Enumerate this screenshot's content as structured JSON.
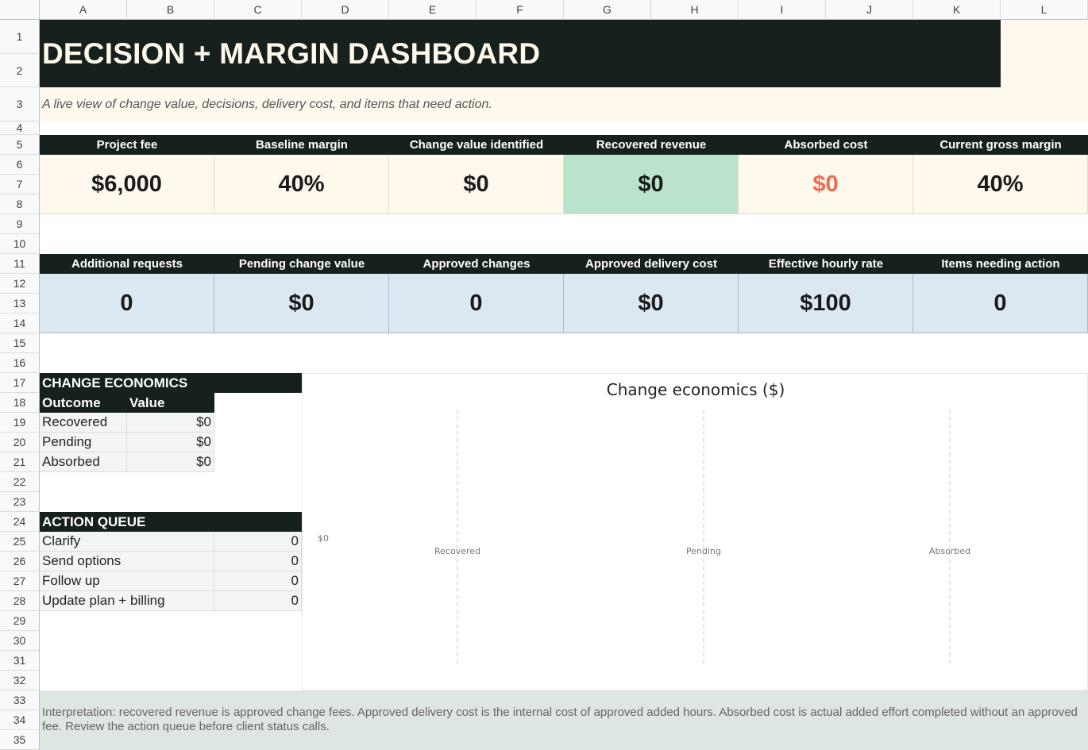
{
  "columns": [
    "A",
    "B",
    "C",
    "D",
    "E",
    "F",
    "G",
    "H",
    "I",
    "J",
    "K",
    "L"
  ],
  "rows": [
    "1",
    "2",
    "3",
    "4",
    "5",
    "6",
    "7",
    "8",
    "9",
    "10",
    "11",
    "12",
    "13",
    "14",
    "15",
    "16",
    "17",
    "18",
    "19",
    "20",
    "21",
    "22",
    "23",
    "24",
    "25",
    "26",
    "27",
    "28",
    "29",
    "30",
    "31",
    "32",
    "33",
    "34",
    "35"
  ],
  "title": "DECISION + MARGIN DASHBOARD",
  "subtitle": "A live view of change value, decisions, delivery cost, and items that need action.",
  "kpis_top": [
    {
      "label": "Project fee",
      "value": "$6,000",
      "bg": "#fff8ec",
      "color": "#1a1a1a"
    },
    {
      "label": "Baseline margin",
      "value": "40%",
      "bg": "#fff8ec",
      "color": "#1a1a1a"
    },
    {
      "label": "Change value identified",
      "value": "$0",
      "bg": "#fff8ec",
      "color": "#1a1a1a"
    },
    {
      "label": "Recovered revenue",
      "value": "$0",
      "bg": "#b9e3ca",
      "color": "#1a1a1a"
    },
    {
      "label": "Absorbed cost",
      "value": "$0",
      "bg": "#fff8ec",
      "color": "#f06b4e"
    },
    {
      "label": "Current gross margin",
      "value": "40%",
      "bg": "#fff8ec",
      "color": "#1a1a1a"
    }
  ],
  "kpis_bottom": [
    {
      "label": "Additional requests",
      "value": "0"
    },
    {
      "label": "Pending change value",
      "value": "$0"
    },
    {
      "label": "Approved changes",
      "value": "0"
    },
    {
      "label": "Approved delivery cost",
      "value": "$0"
    },
    {
      "label": "Effective hourly rate",
      "value": "$100"
    },
    {
      "label": "Items needing action",
      "value": "0"
    }
  ],
  "change_economics": {
    "title": "CHANGE ECONOMICS",
    "col_outcome": "Outcome",
    "col_value": "Value",
    "rows": [
      {
        "outcome": "Recovered",
        "value": "$0"
      },
      {
        "outcome": "Pending",
        "value": "$0"
      },
      {
        "outcome": "Absorbed",
        "value": "$0"
      }
    ]
  },
  "action_queue": {
    "title": "ACTION QUEUE",
    "rows": [
      {
        "label": "Clarify",
        "count": "0"
      },
      {
        "label": "Send options",
        "count": "0"
      },
      {
        "label": "Follow up",
        "count": "0"
      },
      {
        "label": "Update plan + billing",
        "count": "0"
      }
    ]
  },
  "chart_data": {
    "type": "bar",
    "title": "Change economics ($)",
    "categories": [
      "Recovered",
      "Pending",
      "Absorbed"
    ],
    "values": [
      0,
      0,
      0
    ],
    "y_tick_labels": [
      "$0"
    ],
    "grid": "vertical-dashed",
    "legend": "none"
  },
  "footer": "Interpretation: recovered revenue is approved change fees. Approved delivery cost is the internal cost of approved added hours. Absorbed cost is actual added effort completed without an approved fee. Review the action queue before client status calls.",
  "colors": {
    "dark": "#16211d",
    "cream": "#fff8ec",
    "green": "#b9e3ca",
    "blue": "#dce8f1",
    "red": "#f06b4e",
    "footer_bg": "#dde6e0"
  }
}
